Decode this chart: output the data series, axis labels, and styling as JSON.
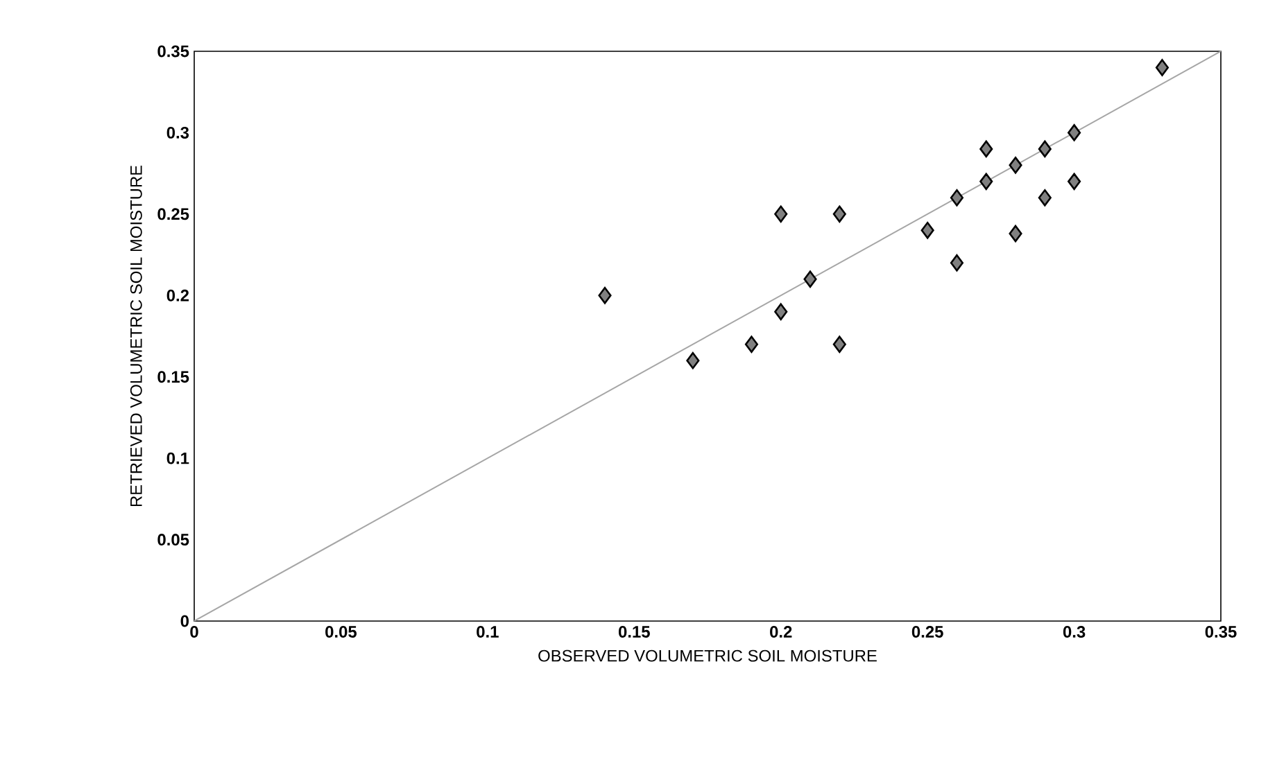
{
  "chart_data": {
    "type": "scatter",
    "xlabel": "OBSERVED VOLUMETRIC SOIL MOISTURE",
    "ylabel": "RETRIEVED VOLUMETRIC SOIL MOISTURE",
    "xlim": [
      0,
      0.35
    ],
    "ylim": [
      0,
      0.35
    ],
    "xticks": [
      0,
      0.05,
      0.1,
      0.15,
      0.2,
      0.25,
      0.3,
      0.35
    ],
    "yticks": [
      0,
      0.05,
      0.1,
      0.15,
      0.2,
      0.25,
      0.3,
      0.35
    ],
    "marker": "diamond",
    "series": [
      {
        "color": "#808080",
        "x": [
          0.14,
          0.17,
          0.19,
          0.2,
          0.2,
          0.21,
          0.22,
          0.22,
          0.25,
          0.26,
          0.26,
          0.27,
          0.27,
          0.28,
          0.28,
          0.29,
          0.29,
          0.3,
          0.3,
          0.33
        ],
        "values": [
          0.2,
          0.16,
          0.17,
          0.19,
          0.25,
          0.21,
          0.25,
          0.17,
          0.24,
          0.26,
          0.22,
          0.29,
          0.27,
          0.28,
          0.238,
          0.29,
          0.26,
          0.3,
          0.27,
          0.34
        ]
      },
      {
        "type": "line",
        "color": "#a6a6a6",
        "marker": "none",
        "x": [
          0,
          0.35
        ],
        "values": [
          0,
          0.35
        ]
      }
    ]
  }
}
